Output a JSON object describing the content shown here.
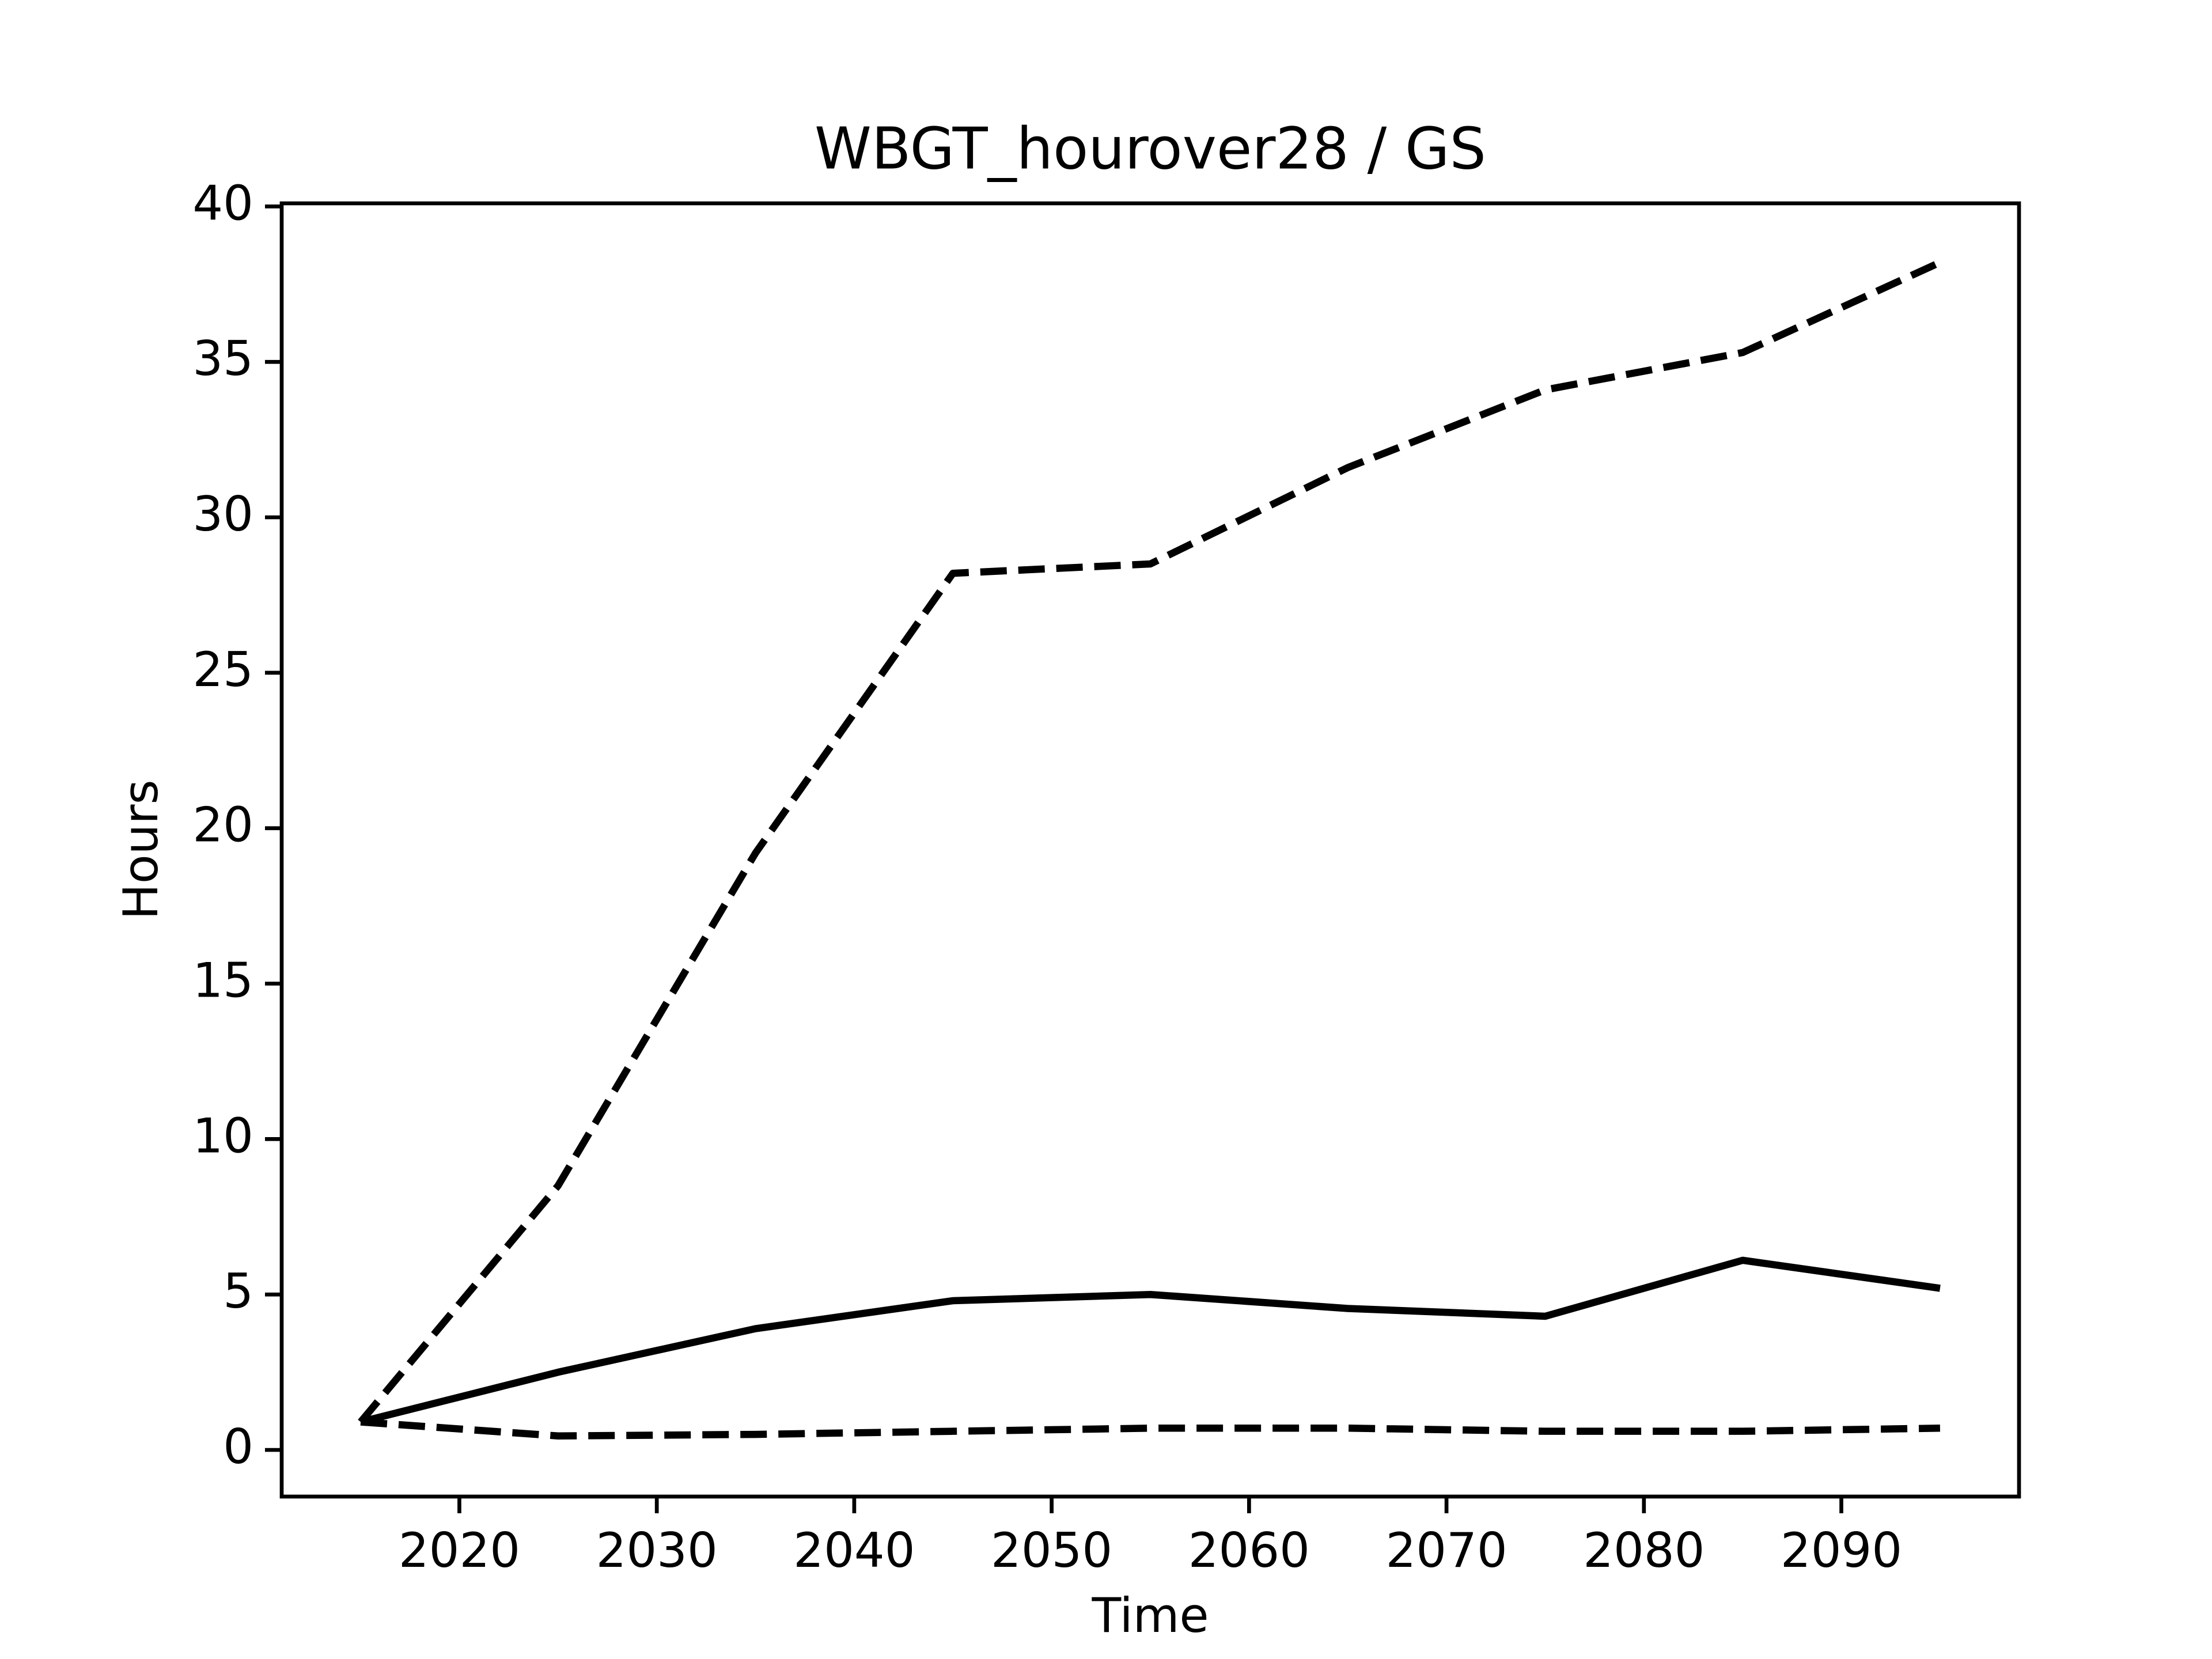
{
  "chart_data": {
    "type": "line",
    "title": "WBGT_hourover28 / GS",
    "xlabel": "Time",
    "ylabel": "Hours",
    "x": [
      2015,
      2025,
      2035,
      2045,
      2055,
      2065,
      2075,
      2085,
      2095
    ],
    "series": [
      {
        "color": "#000000",
        "linestyle": "dashed",
        "values": [
          0.9,
          8.5,
          19.2,
          28.2,
          28.5,
          31.6,
          34.1,
          35.3,
          38.2
        ]
      },
      {
        "color": "#000000",
        "linestyle": "solid",
        "values": [
          0.9,
          2.5,
          3.9,
          4.8,
          5.0,
          4.55,
          4.3,
          6.1,
          5.2
        ]
      },
      {
        "color": "#000000",
        "linestyle": "dashed",
        "values": [
          0.9,
          0.45,
          0.5,
          0.6,
          0.7,
          0.7,
          0.6,
          0.6,
          0.7
        ]
      }
    ],
    "xlim": [
      2011,
      2099
    ],
    "xticks": [
      2020,
      2030,
      2040,
      2050,
      2060,
      2070,
      2080,
      2090
    ],
    "ylim": [
      -1.5,
      40.1
    ],
    "yticks": [
      0,
      5,
      10,
      15,
      20,
      25,
      30,
      35,
      40
    ],
    "grid": false
  }
}
